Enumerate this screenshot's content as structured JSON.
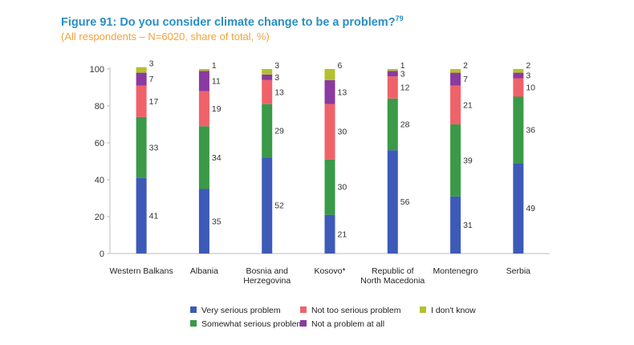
{
  "title_main": "Figure 91: Do you consider climate change to be a problem?",
  "title_sup": "79",
  "subtitle": "(All respondents – N=6020, share of total, %)",
  "chart_data": {
    "type": "bar",
    "stacked": true,
    "categories": [
      "Western Balkans",
      "Albania",
      "Bosnia and Herzegovina",
      "Kosovo*",
      "Republic of North Macedonia",
      "Montenegro",
      "Serbia"
    ],
    "category_lines": [
      [
        "Western Balkans"
      ],
      [
        "Albania"
      ],
      [
        "Bosnia and",
        "Herzegovina"
      ],
      [
        "Kosovo*"
      ],
      [
        "Republic of",
        "North Macedonia"
      ],
      [
        "Montenegro"
      ],
      [
        "Serbia"
      ]
    ],
    "series": [
      {
        "name": "Very serious problem",
        "color": "#3d5ab8",
        "values": [
          41,
          35,
          52,
          21,
          56,
          31,
          49
        ]
      },
      {
        "name": "Somewhat serious problem",
        "color": "#3a9a48",
        "values": [
          33,
          34,
          29,
          30,
          28,
          39,
          36
        ]
      },
      {
        "name": "Not too serious problem",
        "color": "#f0626a",
        "values": [
          17,
          19,
          13,
          30,
          12,
          21,
          10
        ]
      },
      {
        "name": "Not a problem at all",
        "color": "#8a3aa0",
        "values": [
          7,
          11,
          3,
          13,
          3,
          7,
          3
        ]
      },
      {
        "name": "I don't know",
        "color": "#b5c02e",
        "values": [
          3,
          1,
          3,
          6,
          1,
          2,
          2
        ]
      }
    ],
    "yticks": [
      0,
      20,
      40,
      60,
      80,
      100
    ],
    "ylim": [
      0,
      100
    ],
    "grid": false,
    "legend_position": "bottom"
  }
}
